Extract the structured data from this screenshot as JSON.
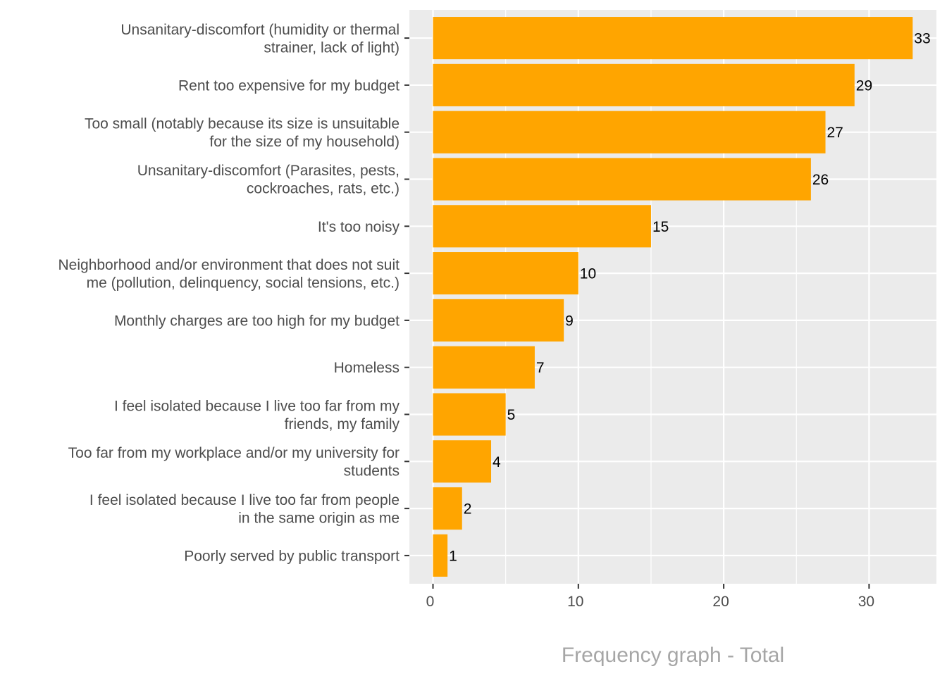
{
  "chart_data": {
    "type": "bar",
    "orientation": "horizontal",
    "title": "",
    "caption": "Frequency graph - Total",
    "xlabel": "",
    "ylabel": "",
    "xlim": [
      0,
      35
    ],
    "x_ticks": [
      0,
      10,
      20,
      30
    ],
    "grid": true,
    "legend": "none",
    "bar_color": "#FFA500",
    "panel_color": "#EBEBEB",
    "categories": [
      [
        "Unsanitary-discomfort (humidity or thermal",
        "strainer, lack of light)"
      ],
      [
        "Rent too expensive for my budget"
      ],
      [
        "Too small (notably because its size is unsuitable",
        "for the size of my household)"
      ],
      [
        "Unsanitary-discomfort (Parasites, pests,",
        "cockroaches, rats, etc.)"
      ],
      [
        "It's too noisy"
      ],
      [
        "Neighborhood and/or environment that does not suit",
        "me (pollution, delinquency, social tensions, etc.)"
      ],
      [
        "Monthly charges are too high for my budget"
      ],
      [
        "Homeless"
      ],
      [
        "I feel isolated because I live too far from my",
        "friends, my family"
      ],
      [
        "Too far from my workplace and/or my university for",
        "students"
      ],
      [
        "I feel isolated because I live too far from people",
        "in the same origin as me"
      ],
      [
        "Poorly served by public transport"
      ]
    ],
    "values": [
      33,
      29,
      27,
      26,
      15,
      10,
      9,
      7,
      5,
      4,
      2,
      1
    ]
  }
}
